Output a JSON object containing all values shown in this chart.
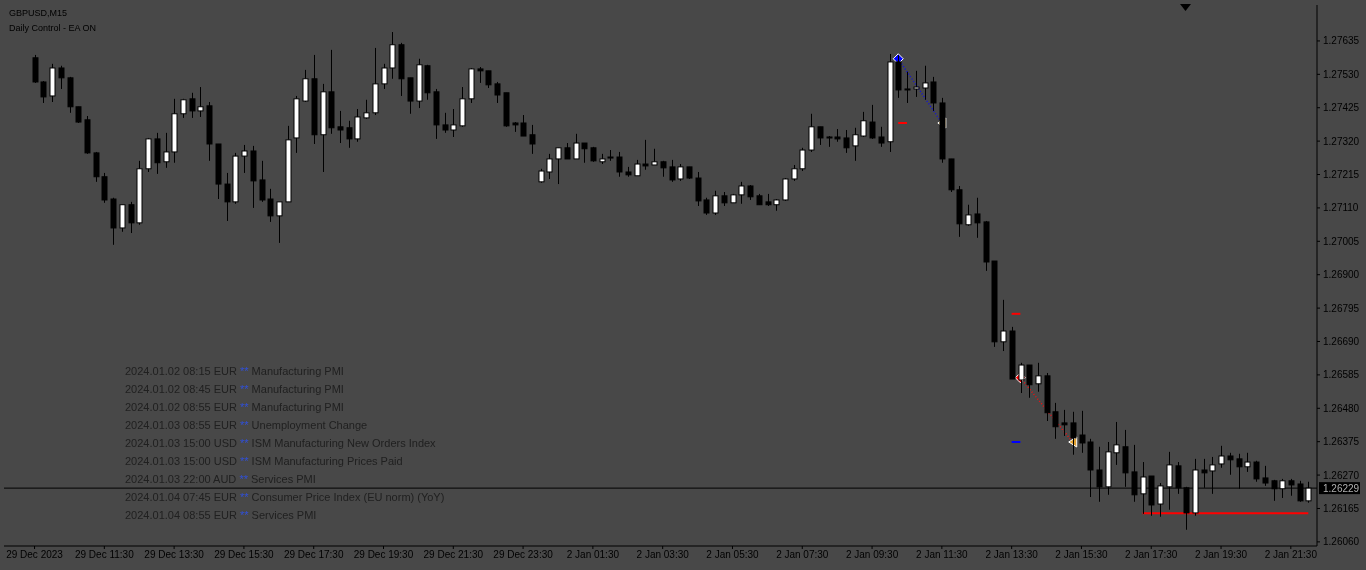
{
  "chart_data": {
    "type": "candlestick",
    "title": "GBPUSD,M15",
    "subtitle": "Daily Control - EA ON",
    "annotations": [
      "2024.01.02 08:15 EUR ** Manufacturing PMI",
      "2024.01.02 08:45 EUR ** Manufacturing PMI",
      "2024.01.02 08:55 EUR ** Manufacturing PMI",
      "2024.01.03 08:55 EUR ** Unemployment Change",
      "2024.01.03 15:00 USD ** ISM Manufacturing New Orders Index",
      "2024.01.03 15:00 USD ** ISM Manufacturing Prices Paid",
      "2024.01.03 22:00 AUD ** Services PMI",
      "2024.01.04 07:45 EUR ** Consumer Price Index (EU norm) (YoY)",
      "2024.01.04 08:55 EUR ** Services PMI"
    ],
    "categories": [
      "29 Dec 2023",
      null,
      null,
      null,
      null,
      null,
      null,
      null,
      "29 Dec 11:30",
      null,
      null,
      null,
      null,
      null,
      null,
      null,
      "29 Dec 13:30",
      null,
      null,
      null,
      null,
      null,
      null,
      null,
      "29 Dec 15:30",
      null,
      null,
      null,
      null,
      null,
      null,
      null,
      "29 Dec 17:30",
      null,
      null,
      null,
      null,
      null,
      null,
      null,
      "29 Dec 19:30",
      null,
      null,
      null,
      null,
      null,
      null,
      null,
      "29 Dec 21:30",
      null,
      null,
      null,
      null,
      null,
      null,
      null,
      "29 Dec 23:30",
      null,
      null,
      null,
      null,
      null,
      null,
      null,
      "2 Jan 01:30",
      null,
      null,
      null,
      null,
      null,
      null,
      null,
      "2 Jan 03:30",
      null,
      null,
      null,
      null,
      null,
      null,
      null,
      "2 Jan 05:30",
      null,
      null,
      null,
      null,
      null,
      null,
      null,
      "2 Jan 07:30",
      null,
      null,
      null,
      null,
      null,
      null,
      null,
      "2 Jan 09:30",
      null,
      null,
      null,
      null,
      null,
      null,
      null,
      "2 Jan 11:30",
      null,
      null,
      null,
      null,
      null,
      null,
      null,
      "2 Jan 13:30",
      null,
      null,
      null,
      null,
      null,
      null,
      null,
      "2 Jan 15:30",
      null,
      null,
      null,
      null,
      null,
      null,
      null,
      "2 Jan 17:30",
      null,
      null,
      null,
      null,
      null,
      null,
      null,
      "2 Jan 19:30",
      null,
      null,
      null,
      null,
      null,
      null,
      null,
      "2 Jan 21:30",
      null,
      null
    ],
    "ohlc": [
      [
        1.27582,
        1.27591,
        1.27503,
        1.27506
      ],
      [
        1.27506,
        1.27509,
        1.2744,
        1.27459
      ],
      [
        1.27462,
        1.27563,
        1.27443,
        1.2755
      ],
      [
        1.2755,
        1.27557,
        1.27484,
        1.27519
      ],
      [
        1.27519,
        1.27522,
        1.27409,
        1.27428
      ],
      [
        1.27428,
        1.27428,
        1.27377,
        1.2738
      ],
      [
        1.27387,
        1.27399,
        1.2728,
        1.27283
      ],
      [
        1.27283,
        1.27286,
        1.27192,
        1.27208
      ],
      [
        1.27208,
        1.2722,
        1.27126,
        1.27135
      ],
      [
        1.27138,
        1.27142,
        1.26994,
        1.27047
      ],
      [
        1.27047,
        1.2712,
        1.27035,
        1.2712
      ],
      [
        1.2712,
        1.27129,
        1.27031,
        1.27063
      ],
      [
        1.27063,
        1.27258,
        1.27057,
        1.27233
      ],
      [
        1.27233,
        1.2733,
        1.27223,
        1.27327
      ],
      [
        1.27327,
        1.27346,
        1.27217,
        1.27252
      ],
      [
        1.27255,
        1.27346,
        1.27236,
        1.27286
      ],
      [
        1.27286,
        1.27453,
        1.27252,
        1.27406
      ],
      [
        1.27406,
        1.27453,
        1.27393,
        1.2745
      ],
      [
        1.27453,
        1.27472,
        1.27393,
        1.27415
      ],
      [
        1.27415,
        1.2749,
        1.27396,
        1.27428
      ],
      [
        1.27431,
        1.27443,
        1.27258,
        1.27311
      ],
      [
        1.27311,
        1.27311,
        1.27138,
        1.27185
      ],
      [
        1.27185,
        1.2722,
        1.27069,
        1.27129
      ],
      [
        1.27129,
        1.27283,
        1.27123,
        1.27273
      ],
      [
        1.27273,
        1.27308,
        1.2722,
        1.27289
      ],
      [
        1.27289,
        1.27305,
        1.2711,
        1.27195
      ],
      [
        1.27198,
        1.27258,
        1.27129,
        1.27135
      ],
      [
        1.27138,
        1.2717,
        1.27066,
        1.27085
      ],
      [
        1.27085,
        1.27129,
        1.27,
        1.27129
      ],
      [
        1.27129,
        1.27368,
        1.27129,
        1.27324
      ],
      [
        1.2733,
        1.27462,
        1.27283,
        1.27453
      ],
      [
        1.27446,
        1.27544,
        1.27443,
        1.27516
      ],
      [
        1.27516,
        1.27591,
        1.27311,
        1.2734
      ],
      [
        1.2734,
        1.275,
        1.27223,
        1.27475
      ],
      [
        1.27475,
        1.27607,
        1.27343,
        1.27362
      ],
      [
        1.27365,
        1.27415,
        1.27314,
        1.27355
      ],
      [
        1.27362,
        1.27384,
        1.27299,
        1.27327
      ],
      [
        1.27327,
        1.27421,
        1.27318,
        1.27396
      ],
      [
        1.27393,
        1.2745,
        1.2739,
        1.27409
      ],
      [
        1.27409,
        1.27613,
        1.27402,
        1.275
      ],
      [
        1.275,
        1.27563,
        1.27484,
        1.2755
      ],
      [
        1.2755,
        1.27663,
        1.27516,
        1.27623
      ],
      [
        1.27623,
        1.27629,
        1.27462,
        1.27516
      ],
      [
        1.27519,
        1.27519,
        1.27406,
        1.27446
      ],
      [
        1.27446,
        1.27579,
        1.27424,
        1.2756
      ],
      [
        1.27557,
        1.2756,
        1.2745,
        1.27472
      ],
      [
        1.27475,
        1.27484,
        1.27327,
        1.27371
      ],
      [
        1.27371,
        1.27409,
        1.27346,
        1.27355
      ],
      [
        1.27355,
        1.27421,
        1.27333,
        1.27371
      ],
      [
        1.27368,
        1.2749,
        1.27365,
        1.27453
      ],
      [
        1.27453,
        1.2755,
        1.2744,
        1.27547
      ],
      [
        1.27547,
        1.27553,
        1.27503,
        1.27541
      ],
      [
        1.27541,
        1.27541,
        1.27487,
        1.27497
      ],
      [
        1.275,
        1.27506,
        1.2744,
        1.27465
      ],
      [
        1.27472,
        1.27472,
        1.27365,
        1.27368
      ],
      [
        1.27377,
        1.2738,
        1.27349,
        1.27371
      ],
      [
        1.27377,
        1.27402,
        1.27336,
        1.27336
      ],
      [
        1.2734,
        1.27371,
        1.2728,
        1.27311
      ],
      [
        1.27192,
        1.27233,
        1.27189,
        1.27226
      ],
      [
        1.27223,
        1.2728,
        1.27201,
        1.27264
      ],
      [
        1.27264,
        1.27299,
        1.27185,
        1.27299
      ],
      [
        1.27299,
        1.27314,
        1.27264,
        1.27264
      ],
      [
        1.27264,
        1.27343,
        1.27264,
        1.27314
      ],
      [
        1.27314,
        1.27314,
        1.27252,
        1.27296
      ],
      [
        1.27299,
        1.27302,
        1.27255,
        1.27258
      ],
      [
        1.27255,
        1.2728,
        1.27248,
        1.27264
      ],
      [
        1.2727,
        1.27292,
        1.27258,
        1.27267
      ],
      [
        1.2727,
        1.27286,
        1.27208,
        1.27223
      ],
      [
        1.27223,
        1.27239,
        1.27208,
        1.27214
      ],
      [
        1.27211,
        1.27261,
        1.27211,
        1.27248
      ],
      [
        1.27248,
        1.27324,
        1.2723,
        1.27242
      ],
      [
        1.27245,
        1.27296,
        1.27245,
        1.27255
      ],
      [
        1.27255,
        1.27258,
        1.27208,
        1.27236
      ],
      [
        1.27239,
        1.27261,
        1.27192,
        1.27198
      ],
      [
        1.27201,
        1.27248,
        1.27195,
        1.27239
      ],
      [
        1.27239,
        1.27239,
        1.27201,
        1.27204
      ],
      [
        1.27204,
        1.27223,
        1.27116,
        1.27132
      ],
      [
        1.27135,
        1.27142,
        1.27088,
        1.27094
      ],
      [
        1.27094,
        1.27164,
        1.27088,
        1.27148
      ],
      [
        1.27148,
        1.2716,
        1.27116,
        1.27126
      ],
      [
        1.27126,
        1.27154,
        1.27126,
        1.27151
      ],
      [
        1.27151,
        1.27192,
        1.27123,
        1.27179
      ],
      [
        1.27179,
        1.27182,
        1.27135,
        1.27145
      ],
      [
        1.27148,
        1.27154,
        1.2712,
        1.2712
      ],
      [
        1.27129,
        1.27154,
        1.27116,
        1.2712
      ],
      [
        1.2712,
        1.27138,
        1.27101,
        1.27135
      ],
      [
        1.27135,
        1.27204,
        1.27132,
        1.27201
      ],
      [
        1.27201,
        1.27245,
        1.27195,
        1.27233
      ],
      [
        1.27233,
        1.27299,
        1.27226,
        1.27292
      ],
      [
        1.27292,
        1.27406,
        1.27286,
        1.27365
      ],
      [
        1.27365,
        1.27365,
        1.27308,
        1.2733
      ],
      [
        1.27333,
        1.27336,
        1.27302,
        1.2733
      ],
      [
        1.27333,
        1.27358,
        1.27318,
        1.27327
      ],
      [
        1.2733,
        1.27355,
        1.27283,
        1.27299
      ],
      [
        1.27305,
        1.27362,
        1.27258,
        1.2734
      ],
      [
        1.27336,
        1.27412,
        1.27333,
        1.27384
      ],
      [
        1.2738,
        1.27434,
        1.27327,
        1.2733
      ],
      [
        1.27333,
        1.27365,
        1.27302,
        1.27314
      ],
      [
        1.27318,
        1.27594,
        1.27286,
        1.27569
      ],
      [
        1.27569,
        1.27591,
        1.27456,
        1.27481
      ],
      [
        1.27484,
        1.27538,
        1.2744,
        1.27481
      ],
      [
        1.27484,
        1.27541,
        1.27459,
        1.2749
      ],
      [
        1.27487,
        1.27557,
        1.2745,
        1.27503
      ],
      [
        1.27506,
        1.27522,
        1.27415,
        1.2744
      ],
      [
        1.2744,
        1.27456,
        1.27252,
        1.27264
      ],
      [
        1.27264,
        1.27264,
        1.2716,
        1.27167
      ],
      [
        1.27167,
        1.27179,
        1.27019,
        1.2706
      ],
      [
        1.27057,
        1.2712,
        1.27054,
        1.27088
      ],
      [
        1.27091,
        1.27142,
        1.27016,
        1.27063
      ],
      [
        1.27066,
        1.27069,
        1.26912,
        1.2694
      ],
      [
        1.26943,
        1.26943,
        1.26673,
        1.26689
      ],
      [
        1.26689,
        1.26821,
        1.2666,
        1.26723
      ],
      [
        1.26723,
        1.26736,
        1.26572,
        1.26572
      ],
      [
        1.26569,
        1.26623,
        1.26528,
        1.26616
      ],
      [
        1.26616,
        1.26616,
        1.26513,
        1.26554
      ],
      [
        1.26557,
        1.26623,
        1.26532,
        1.26582
      ],
      [
        1.26582,
        1.26591,
        1.2644,
        1.26466
      ],
      [
        1.26469,
        1.26497,
        1.26384,
        1.26422
      ],
      [
        1.26434,
        1.26475,
        1.26393,
        1.26428
      ],
      [
        1.26434,
        1.26469,
        1.26334,
        1.26387
      ],
      [
        1.26396,
        1.26472,
        1.2634,
        1.26371
      ],
      [
        1.26374,
        1.26384,
        1.26201,
        1.26286
      ],
      [
        1.26286,
        1.26359,
        1.26186,
        1.26233
      ],
      [
        1.26233,
        1.26374,
        1.26208,
        1.26343
      ],
      [
        1.2634,
        1.26437,
        1.26302,
        1.26365
      ],
      [
        1.26359,
        1.26412,
        1.26233,
        1.26277
      ],
      [
        1.2628,
        1.26365,
        1.26186,
        1.26208
      ],
      [
        1.26211,
        1.26311,
        1.26148,
        1.26264
      ],
      [
        1.26267,
        1.26267,
        1.26142,
        1.26176
      ],
      [
        1.26179,
        1.26245,
        1.26139,
        1.26236
      ],
      [
        1.26233,
        1.26343,
        1.26161,
        1.26302
      ],
      [
        1.26299,
        1.26311,
        1.26211,
        1.2623
      ],
      [
        1.2623,
        1.26233,
        1.26098,
        1.26151
      ],
      [
        1.26151,
        1.26321,
        1.26142,
        1.26286
      ],
      [
        1.26286,
        1.26321,
        1.2623,
        1.26277
      ],
      [
        1.26283,
        1.26327,
        1.26211,
        1.26302
      ],
      [
        1.26305,
        1.26362,
        1.26293,
        1.2633
      ],
      [
        1.2633,
        1.2634,
        1.26271,
        1.26318
      ],
      [
        1.26321,
        1.26337,
        1.26227,
        1.26296
      ],
      [
        1.26296,
        1.2634,
        1.2628,
        1.26311
      ],
      [
        1.26311,
        1.26315,
        1.26249,
        1.26258
      ],
      [
        1.26261,
        1.26299,
        1.26236,
        1.26245
      ],
      [
        1.26252,
        1.26255,
        1.26189,
        1.26227
      ],
      [
        1.26227,
        1.26258,
        1.26198,
        1.26252
      ],
      [
        1.26252,
        1.26258,
        1.26205,
        1.26239
      ],
      [
        1.26242,
        1.26252,
        1.26186,
        1.26189
      ],
      [
        1.26189,
        1.26249,
        1.26183,
        1.26229
      ]
    ],
    "series": [
      {
        "type": "line",
        "color": "#1010e0",
        "line_style": "dotted",
        "values": [
          null,
          null,
          null,
          null,
          null,
          null,
          null,
          null,
          null,
          null,
          null,
          null,
          null,
          null,
          null,
          null,
          null,
          null,
          null,
          null,
          null,
          null,
          null,
          null,
          null,
          null,
          null,
          null,
          null,
          null,
          null,
          null,
          null,
          null,
          null,
          null,
          null,
          null,
          null,
          null,
          null,
          null,
          null,
          null,
          null,
          null,
          null,
          null,
          null,
          null,
          null,
          null,
          null,
          null,
          null,
          null,
          null,
          null,
          null,
          null,
          null,
          null,
          null,
          null,
          null,
          null,
          null,
          null,
          null,
          null,
          null,
          null,
          null,
          null,
          null,
          null,
          null,
          null,
          null,
          null,
          null,
          null,
          null,
          null,
          null,
          null,
          null,
          null,
          null,
          null,
          null,
          null,
          null,
          null,
          null,
          null,
          null,
          null,
          null,
          1.27579,
          null,
          null,
          null,
          null,
          1.27377,
          null,
          null,
          null,
          null,
          null,
          null,
          null,
          null,
          null,
          null,
          null,
          null,
          null,
          null,
          null,
          null,
          null,
          null,
          null,
          null,
          null,
          null,
          null,
          null,
          null,
          null,
          null,
          null,
          null,
          null,
          null,
          null,
          null,
          null,
          null,
          null,
          null,
          null,
          null,
          null,
          null,
          null
        ]
      },
      {
        "type": "line",
        "color": "#f01010",
        "line_style": "dotted",
        "values": [
          null,
          null,
          null,
          null,
          null,
          null,
          null,
          null,
          null,
          null,
          null,
          null,
          null,
          null,
          null,
          null,
          null,
          null,
          null,
          null,
          null,
          null,
          null,
          null,
          null,
          null,
          null,
          null,
          null,
          null,
          null,
          null,
          null,
          null,
          null,
          null,
          null,
          null,
          null,
          null,
          null,
          null,
          null,
          null,
          null,
          null,
          null,
          null,
          null,
          null,
          null,
          null,
          null,
          null,
          null,
          null,
          null,
          null,
          null,
          null,
          null,
          null,
          null,
          null,
          null,
          null,
          null,
          null,
          null,
          null,
          null,
          null,
          null,
          null,
          null,
          null,
          null,
          null,
          null,
          null,
          null,
          null,
          null,
          null,
          null,
          null,
          null,
          null,
          null,
          null,
          null,
          null,
          null,
          null,
          null,
          null,
          null,
          null,
          null,
          null,
          null,
          null,
          null,
          null,
          null,
          null,
          null,
          null,
          null,
          null,
          null,
          null,
          null,
          1.26576,
          null,
          null,
          null,
          null,
          null,
          1.26374,
          null,
          null,
          null,
          null,
          null,
          null,
          null,
          null,
          null,
          null,
          null,
          null,
          null,
          null,
          null,
          null,
          null,
          null,
          null,
          null,
          null,
          null,
          null,
          null,
          null,
          null,
          null
        ]
      },
      {
        "type": "line",
        "color": "#ff0000",
        "line_style": "solid",
        "values": [
          null,
          null,
          null,
          null,
          null,
          null,
          null,
          null,
          null,
          null,
          null,
          null,
          null,
          null,
          null,
          null,
          null,
          null,
          null,
          null,
          null,
          null,
          null,
          null,
          null,
          null,
          null,
          null,
          null,
          null,
          null,
          null,
          null,
          null,
          null,
          null,
          null,
          null,
          null,
          null,
          null,
          null,
          null,
          null,
          null,
          null,
          null,
          null,
          null,
          null,
          null,
          null,
          null,
          null,
          null,
          null,
          null,
          null,
          null,
          null,
          null,
          null,
          null,
          null,
          null,
          null,
          null,
          null,
          null,
          null,
          null,
          null,
          null,
          null,
          null,
          null,
          null,
          null,
          null,
          null,
          null,
          null,
          null,
          null,
          null,
          null,
          null,
          null,
          null,
          null,
          null,
          null,
          null,
          null,
          null,
          null,
          null,
          null,
          null,
          1.27377,
          1.27377,
          null,
          null,
          null,
          null,
          null,
          null,
          null,
          null,
          null,
          null,
          null,
          null,
          null,
          null,
          null,
          null,
          null,
          null,
          null,
          null,
          null,
          null,
          null,
          null,
          null,
          null,
          null,
          null,
          null,
          null,
          null,
          null,
          null,
          null,
          null,
          null,
          null,
          null,
          null,
          null,
          null,
          null,
          null,
          null,
          null,
          null
        ]
      },
      {
        "type": "line",
        "color": "#ff0000",
        "line_style": "solid",
        "values": [
          null,
          null,
          null,
          null,
          null,
          null,
          null,
          null,
          null,
          null,
          null,
          null,
          null,
          null,
          null,
          null,
          null,
          null,
          null,
          null,
          null,
          null,
          null,
          null,
          null,
          null,
          null,
          null,
          null,
          null,
          null,
          null,
          null,
          null,
          null,
          null,
          null,
          null,
          null,
          null,
          null,
          null,
          null,
          null,
          null,
          null,
          null,
          null,
          null,
          null,
          null,
          null,
          null,
          null,
          null,
          null,
          null,
          null,
          null,
          null,
          null,
          null,
          null,
          null,
          null,
          null,
          null,
          null,
          null,
          null,
          null,
          null,
          null,
          null,
          null,
          null,
          null,
          null,
          null,
          null,
          null,
          null,
          null,
          null,
          null,
          null,
          null,
          null,
          null,
          null,
          null,
          null,
          null,
          null,
          null,
          null,
          null,
          null,
          null,
          null,
          null,
          null,
          null,
          null,
          null,
          null,
          null,
          null,
          null,
          null,
          null,
          null,
          1.26777,
          1.26777,
          null,
          null,
          null,
          null,
          null,
          null,
          null,
          null,
          null,
          null,
          null,
          null,
          null,
          null,
          null,
          null,
          null,
          null,
          null,
          null,
          null,
          null,
          null,
          null,
          null,
          null,
          null,
          null,
          null,
          null,
          null,
          null,
          null
        ]
      },
      {
        "type": "line",
        "color": "#0000ff",
        "line_style": "solid",
        "values": [
          null,
          null,
          null,
          null,
          null,
          null,
          null,
          null,
          null,
          null,
          null,
          null,
          null,
          null,
          null,
          null,
          null,
          null,
          null,
          null,
          null,
          null,
          null,
          null,
          null,
          null,
          null,
          null,
          null,
          null,
          null,
          null,
          null,
          null,
          null,
          null,
          null,
          null,
          null,
          null,
          null,
          null,
          null,
          null,
          null,
          null,
          null,
          null,
          null,
          null,
          null,
          null,
          null,
          null,
          null,
          null,
          null,
          null,
          null,
          null,
          null,
          null,
          null,
          null,
          null,
          null,
          null,
          null,
          null,
          null,
          null,
          null,
          null,
          null,
          null,
          null,
          null,
          null,
          null,
          null,
          null,
          null,
          null,
          null,
          null,
          null,
          null,
          null,
          null,
          null,
          null,
          null,
          null,
          null,
          null,
          null,
          null,
          null,
          null,
          null,
          null,
          null,
          null,
          null,
          null,
          null,
          null,
          null,
          null,
          null,
          null,
          null,
          1.26374,
          1.26374,
          null,
          null,
          null,
          null,
          null,
          null,
          null,
          null,
          null,
          null,
          null,
          null,
          null,
          null,
          null,
          null,
          null,
          null,
          null,
          null,
          null,
          null,
          null,
          null,
          null,
          null,
          null,
          null,
          null,
          null,
          null,
          null,
          null
        ]
      },
      {
        "type": "line",
        "color": "#ff0000",
        "line_style": "solid",
        "values": [
          null,
          null,
          null,
          null,
          null,
          null,
          null,
          null,
          null,
          null,
          null,
          null,
          null,
          null,
          null,
          null,
          null,
          null,
          null,
          null,
          null,
          null,
          null,
          null,
          null,
          null,
          null,
          null,
          null,
          null,
          null,
          null,
          null,
          null,
          null,
          null,
          null,
          null,
          null,
          null,
          null,
          null,
          null,
          null,
          null,
          null,
          null,
          null,
          null,
          null,
          null,
          null,
          null,
          null,
          null,
          null,
          null,
          null,
          null,
          null,
          null,
          null,
          null,
          null,
          null,
          null,
          null,
          null,
          null,
          null,
          null,
          null,
          null,
          null,
          null,
          null,
          null,
          null,
          null,
          null,
          null,
          null,
          null,
          null,
          null,
          null,
          null,
          null,
          null,
          null,
          null,
          null,
          null,
          null,
          null,
          null,
          null,
          null,
          null,
          null,
          null,
          null,
          null,
          null,
          null,
          null,
          null,
          null,
          null,
          null,
          null,
          null,
          null,
          null,
          null,
          null,
          null,
          null,
          null,
          null,
          null,
          null,
          null,
          null,
          null,
          null,
          null,
          1.2615,
          1.2615,
          1.2615,
          1.2615,
          1.2615,
          1.2615,
          1.2615,
          1.2615,
          1.2615,
          1.2615,
          1.2615,
          1.2615,
          1.2615,
          1.2615,
          1.2615,
          1.2615,
          1.2615,
          1.2615,
          1.2615,
          1.2615
        ]
      },
      {
        "type": "scatter",
        "color": "#0000ff",
        "marker": "diamond",
        "values": [
          null,
          null,
          null,
          null,
          null,
          null,
          null,
          null,
          null,
          null,
          null,
          null,
          null,
          null,
          null,
          null,
          null,
          null,
          null,
          null,
          null,
          null,
          null,
          null,
          null,
          null,
          null,
          null,
          null,
          null,
          null,
          null,
          null,
          null,
          null,
          null,
          null,
          null,
          null,
          null,
          null,
          null,
          null,
          null,
          null,
          null,
          null,
          null,
          null,
          null,
          null,
          null,
          null,
          null,
          null,
          null,
          null,
          null,
          null,
          null,
          null,
          null,
          null,
          null,
          null,
          null,
          null,
          null,
          null,
          null,
          null,
          null,
          null,
          null,
          null,
          null,
          null,
          null,
          null,
          null,
          null,
          null,
          null,
          null,
          null,
          null,
          null,
          null,
          null,
          null,
          null,
          null,
          null,
          null,
          null,
          null,
          null,
          null,
          null,
          1.27579,
          null,
          null,
          null,
          null,
          null,
          null,
          null,
          null,
          null,
          null,
          null,
          null,
          null,
          null,
          null,
          null,
          null,
          null,
          null,
          null,
          null,
          null,
          null,
          null,
          null,
          null,
          null,
          null,
          null,
          null,
          null,
          null,
          null,
          null,
          null,
          null,
          null,
          null,
          null,
          null,
          null,
          null,
          null,
          null,
          null,
          null,
          null
        ]
      },
      {
        "type": "scatter",
        "color": "#ff0000",
        "marker": "diamond",
        "values": [
          null,
          null,
          null,
          null,
          null,
          null,
          null,
          null,
          null,
          null,
          null,
          null,
          null,
          null,
          null,
          null,
          null,
          null,
          null,
          null,
          null,
          null,
          null,
          null,
          null,
          null,
          null,
          null,
          null,
          null,
          null,
          null,
          null,
          null,
          null,
          null,
          null,
          null,
          null,
          null,
          null,
          null,
          null,
          null,
          null,
          null,
          null,
          null,
          null,
          null,
          null,
          null,
          null,
          null,
          null,
          null,
          null,
          null,
          null,
          null,
          null,
          null,
          null,
          null,
          null,
          null,
          null,
          null,
          null,
          null,
          null,
          null,
          null,
          null,
          null,
          null,
          null,
          null,
          null,
          null,
          null,
          null,
          null,
          null,
          null,
          null,
          null,
          null,
          null,
          null,
          null,
          null,
          null,
          null,
          null,
          null,
          null,
          null,
          null,
          null,
          null,
          null,
          null,
          null,
          null,
          null,
          null,
          null,
          null,
          null,
          null,
          null,
          null,
          1.26576,
          null,
          null,
          null,
          null,
          null,
          null,
          null,
          null,
          null,
          null,
          null,
          null,
          null,
          null,
          null,
          null,
          null,
          null,
          null,
          null,
          null,
          null,
          null,
          null,
          null,
          null,
          null,
          null,
          null,
          null,
          null,
          null,
          null
        ]
      },
      {
        "type": "scatter",
        "color": "#e0a030",
        "marker": "triangle",
        "values": [
          null,
          null,
          null,
          null,
          null,
          null,
          null,
          null,
          null,
          null,
          null,
          null,
          null,
          null,
          null,
          null,
          null,
          null,
          null,
          null,
          null,
          null,
          null,
          null,
          null,
          null,
          null,
          null,
          null,
          null,
          null,
          null,
          null,
          null,
          null,
          null,
          null,
          null,
          null,
          null,
          null,
          null,
          null,
          null,
          null,
          null,
          null,
          null,
          null,
          null,
          null,
          null,
          null,
          null,
          null,
          null,
          null,
          null,
          null,
          null,
          null,
          null,
          null,
          null,
          null,
          null,
          null,
          null,
          null,
          null,
          null,
          null,
          null,
          null,
          null,
          null,
          null,
          null,
          null,
          null,
          null,
          null,
          null,
          null,
          null,
          null,
          null,
          null,
          null,
          null,
          null,
          null,
          null,
          null,
          null,
          null,
          null,
          null,
          null,
          null,
          null,
          null,
          null,
          null,
          1.27377,
          null,
          null,
          null,
          null,
          null,
          null,
          null,
          null,
          null,
          null,
          null,
          null,
          null,
          null,
          1.26374,
          null,
          null,
          null,
          null,
          null,
          null,
          null,
          null,
          null,
          null,
          null,
          null,
          null,
          null,
          null,
          null,
          null,
          null,
          null,
          null,
          null,
          null,
          null,
          null,
          null,
          null,
          null
        ]
      }
    ],
    "ylim": [
      1.26047,
      1.27748
    ],
    "yticks": [
      {
        "value": 1.27635,
        "label": "1.27635"
      },
      {
        "value": 1.2753,
        "label": "1.27530"
      },
      {
        "value": 1.27425,
        "label": "1.27425"
      },
      {
        "value": 1.2732,
        "label": "1.27320"
      },
      {
        "value": 1.27215,
        "label": "1.27215"
      },
      {
        "value": 1.2711,
        "label": "1.27110"
      },
      {
        "value": 1.27005,
        "label": "1.27005"
      },
      {
        "value": 1.269,
        "label": "1.26900"
      },
      {
        "value": 1.26795,
        "label": "1.26795"
      },
      {
        "value": 1.2669,
        "label": "1.26690"
      },
      {
        "value": 1.26585,
        "label": "1.26585"
      },
      {
        "value": 1.2648,
        "label": "1.26480"
      },
      {
        "value": 1.26375,
        "label": "1.26375"
      },
      {
        "value": 1.2627,
        "label": "1.26270"
      },
      {
        "value": 1.26165,
        "label": "1.26165"
      },
      {
        "value": 1.2606,
        "label": "1.26060"
      }
    ],
    "ref_lines": [
      {
        "axis": "y",
        "value": 1.26229,
        "label": "1.26229",
        "color": "#000000"
      }
    ]
  }
}
